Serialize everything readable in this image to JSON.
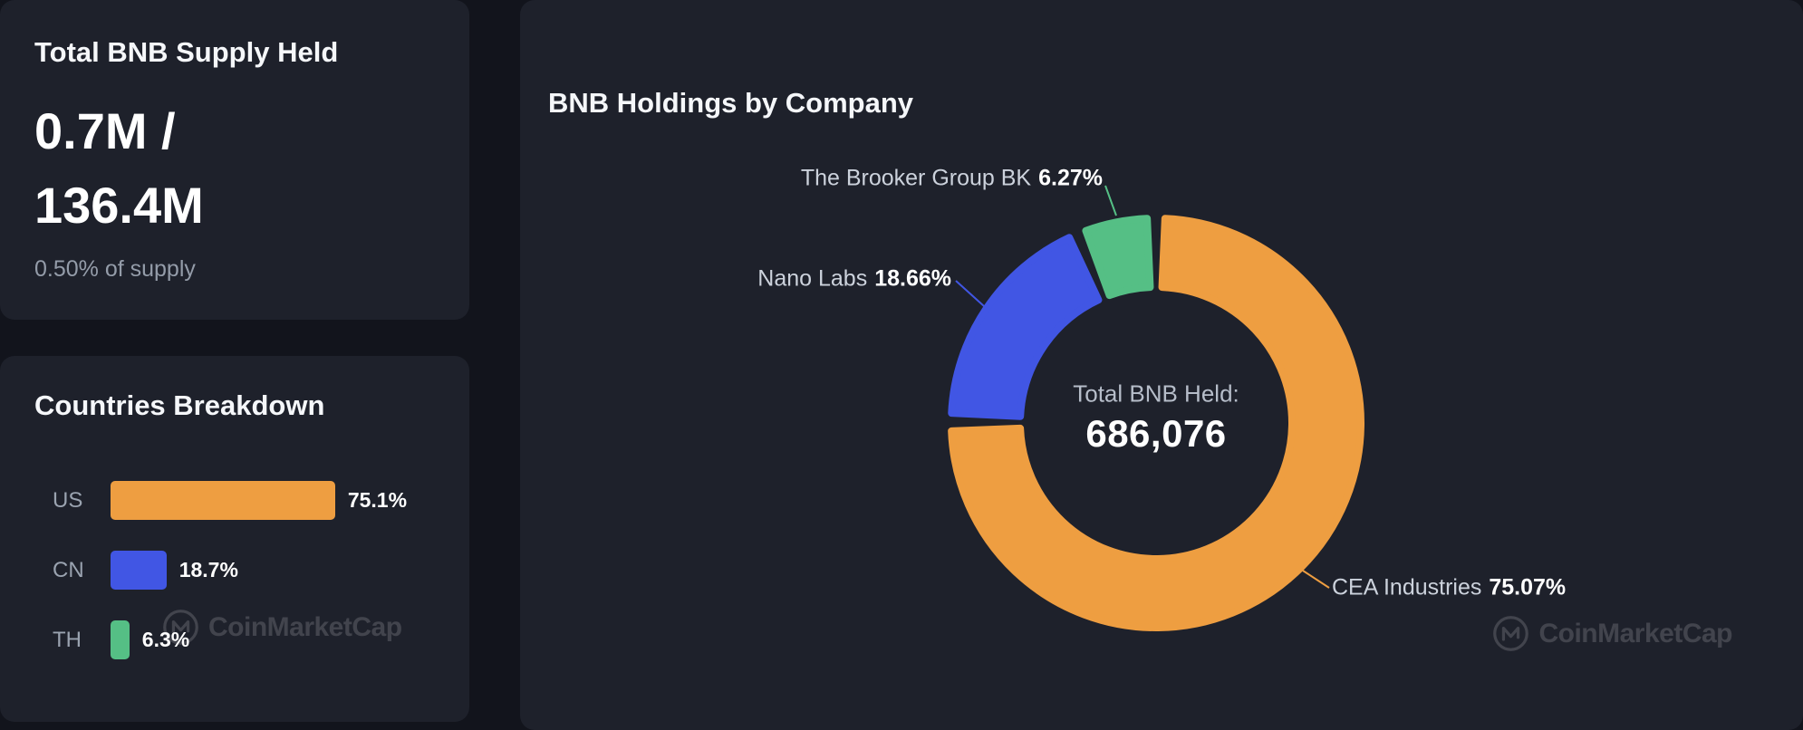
{
  "page": {
    "background": "#12141c",
    "card_background": "#1e212b"
  },
  "supply_card": {
    "title": "Total BNB Supply Held",
    "amount_line1": "0.7M /",
    "amount_line2": "136.4M",
    "subtitle": "0.50% of supply"
  },
  "countries_card": {
    "title": "Countries Breakdown",
    "watermark": "CoinMarketCap"
  },
  "holdings_card": {
    "title": "BNB Holdings by Company",
    "center_label": "Total BNB Held:",
    "center_value": "686,076",
    "watermark": "CoinMarketCap"
  },
  "chart_data": [
    {
      "type": "bar",
      "orientation": "horizontal",
      "title": "Countries Breakdown",
      "categories": [
        "US",
        "CN",
        "TH"
      ],
      "values": [
        75.1,
        18.7,
        6.3
      ],
      "value_labels": [
        "75.1%",
        "18.7%",
        "6.3%"
      ],
      "colors": [
        "#ee9e41",
        "#4156e4",
        "#55bf85"
      ],
      "xlim": [
        0,
        100
      ],
      "grid": false,
      "legend": false
    },
    {
      "type": "pie",
      "donut": true,
      "title": "BNB Holdings by Company",
      "labels": [
        "CEA Industries",
        "Nano Labs",
        "The Brooker Group BK"
      ],
      "values": [
        75.07,
        18.66,
        6.27
      ],
      "value_labels": [
        "75.07%",
        "18.66%",
        "6.27%"
      ],
      "colors": [
        "#ee9e41",
        "#4156e4",
        "#55bf85"
      ],
      "center_label": "Total BNB Held:",
      "center_value": "686,076",
      "legend": false
    }
  ]
}
